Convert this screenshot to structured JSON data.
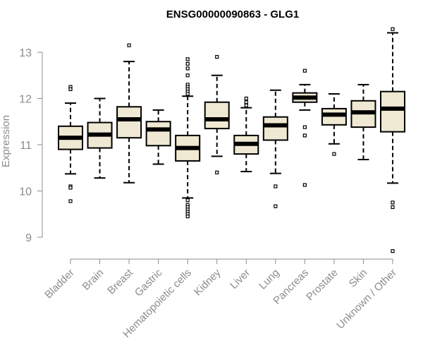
{
  "chart_data": {
    "type": "boxplot",
    "title": "ENSG00000090863 - GLG1",
    "ylabel": "Expression",
    "xlabel": "",
    "ylim": [
      8.6,
      13.6
    ],
    "yticks": [
      9,
      10,
      11,
      12,
      13
    ],
    "grid": false,
    "box_fill": "#efe8d2",
    "box_stroke": "#000000",
    "categories": [
      "Bladder",
      "Brain",
      "Breast",
      "Gastric",
      "Hematopoietic cells",
      "Kidney",
      "Liver",
      "Lung",
      "Pancreas",
      "Prostate",
      "Skin",
      "Unknown / Other"
    ],
    "boxes": [
      {
        "whisker_low": 10.37,
        "q1": 10.9,
        "median": 11.15,
        "q3": 11.4,
        "whisker_high": 11.9,
        "outliers": [
          12.25,
          12.2,
          10.1,
          10.07,
          9.78
        ]
      },
      {
        "whisker_low": 10.28,
        "q1": 10.93,
        "median": 11.22,
        "q3": 11.48,
        "whisker_high": 12.0,
        "outliers": []
      },
      {
        "whisker_low": 10.18,
        "q1": 11.15,
        "median": 11.55,
        "q3": 11.82,
        "whisker_high": 12.8,
        "outliers": [
          13.15
        ]
      },
      {
        "whisker_low": 10.58,
        "q1": 10.98,
        "median": 11.33,
        "q3": 11.5,
        "whisker_high": 11.75,
        "outliers": []
      },
      {
        "whisker_low": 9.85,
        "q1": 10.65,
        "median": 10.93,
        "q3": 11.2,
        "whisker_high": 12.05,
        "outliers": [
          12.85,
          12.75,
          12.65,
          12.5,
          12.3,
          12.25,
          12.2,
          12.15,
          12.1,
          9.8,
          9.7,
          9.65,
          9.6,
          9.55,
          9.5,
          9.45
        ]
      },
      {
        "whisker_low": 10.75,
        "q1": 11.35,
        "median": 11.55,
        "q3": 11.92,
        "whisker_high": 12.5,
        "outliers": [
          12.9,
          10.4
        ]
      },
      {
        "whisker_low": 10.42,
        "q1": 10.8,
        "median": 11.02,
        "q3": 11.2,
        "whisker_high": 11.8,
        "outliers": [
          12.0,
          11.92,
          11.85
        ]
      },
      {
        "whisker_low": 10.38,
        "q1": 11.1,
        "median": 11.42,
        "q3": 11.6,
        "whisker_high": 12.18,
        "outliers": [
          10.1,
          9.67
        ]
      },
      {
        "whisker_low": 11.75,
        "q1": 11.92,
        "median": 12.02,
        "q3": 12.12,
        "whisker_high": 12.3,
        "outliers": [
          12.6,
          11.38,
          11.2,
          10.13
        ]
      },
      {
        "whisker_low": 11.02,
        "q1": 11.43,
        "median": 11.65,
        "q3": 11.78,
        "whisker_high": 12.1,
        "outliers": [
          10.8
        ]
      },
      {
        "whisker_low": 10.68,
        "q1": 11.38,
        "median": 11.7,
        "q3": 11.95,
        "whisker_high": 12.3,
        "outliers": []
      },
      {
        "whisker_low": 10.17,
        "q1": 11.28,
        "median": 11.78,
        "q3": 12.15,
        "whisker_high": 13.42,
        "outliers": [
          13.5,
          9.75,
          9.65,
          8.7
        ]
      }
    ]
  }
}
